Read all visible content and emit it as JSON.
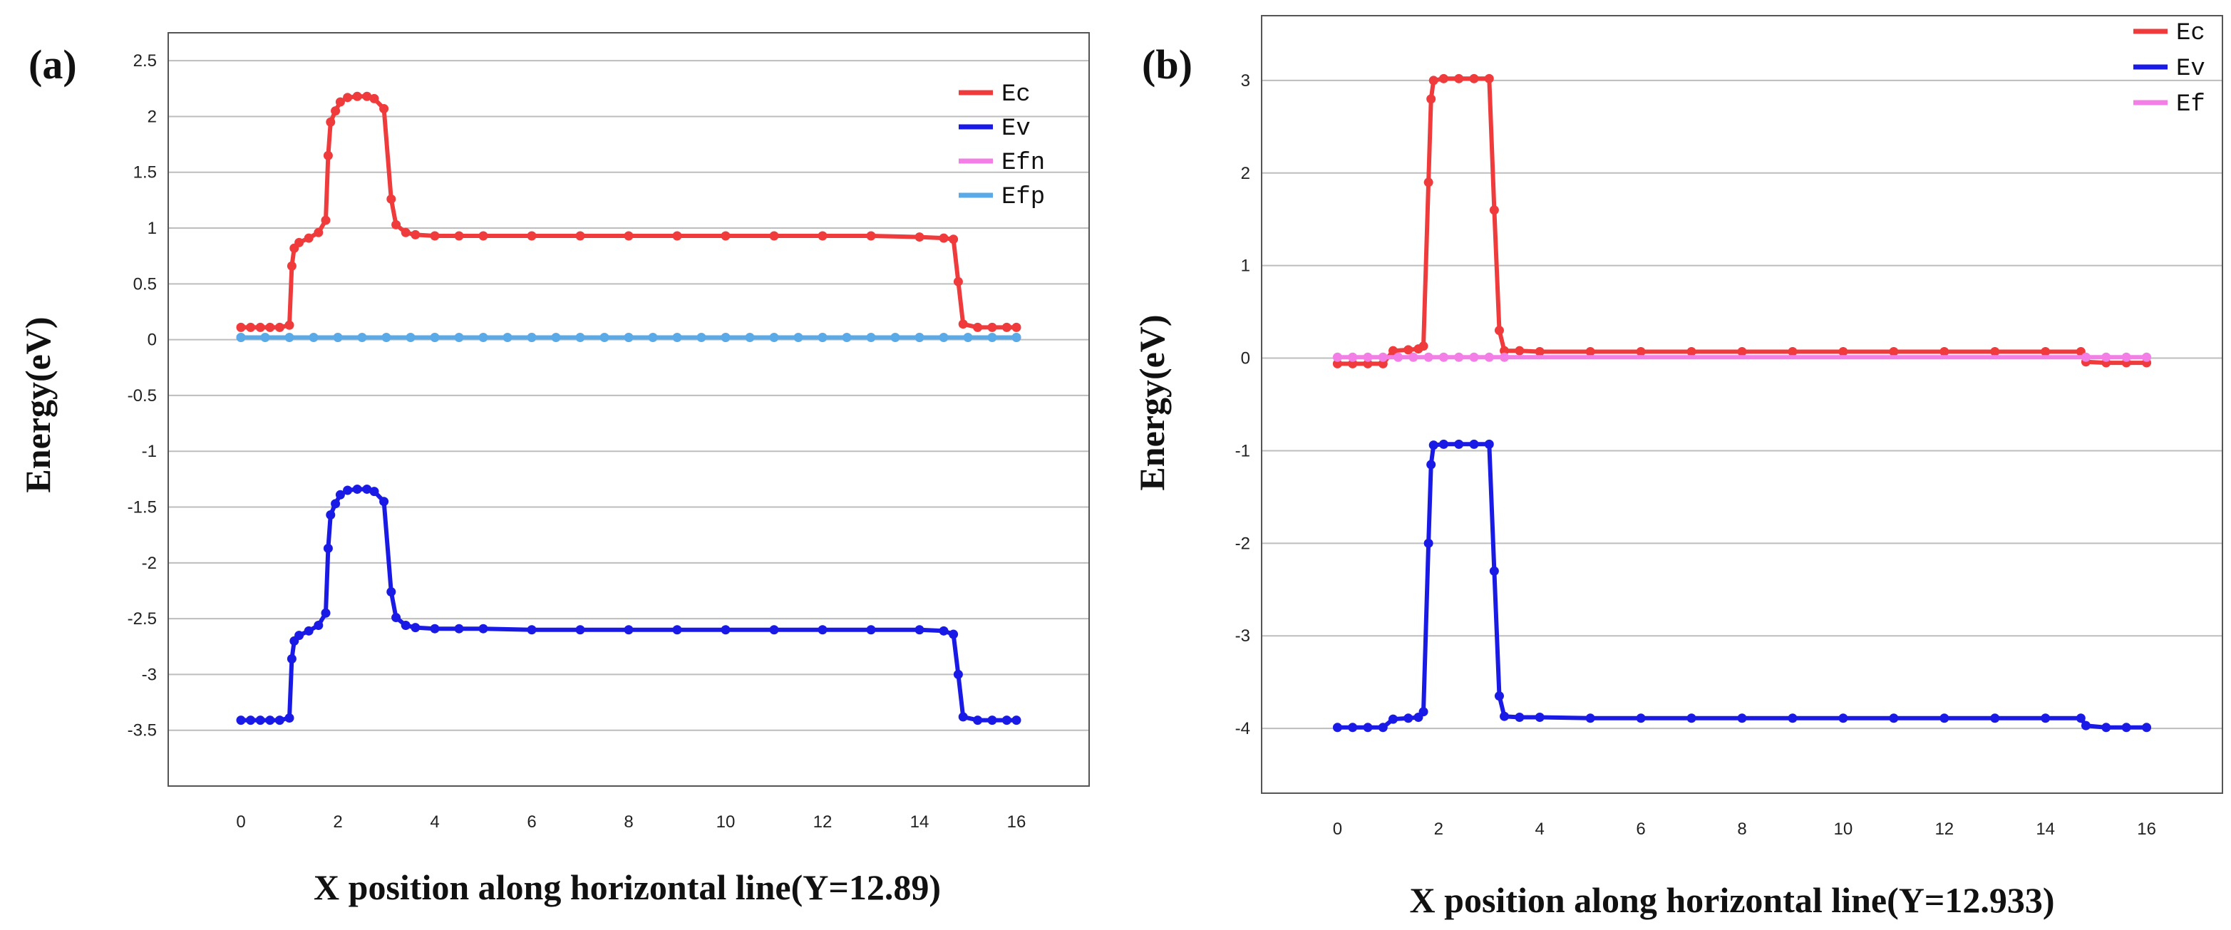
{
  "colors": {
    "Ec": "#ef3b3b",
    "Ev": "#1a1ae6",
    "Efn": "#f27ee6",
    "Efp": "#5aaae8",
    "Ef": "#f27ee6",
    "grid": "#bdbdbd",
    "frame": "#555555"
  },
  "chart_data": [
    {
      "type": "line",
      "panel_label": "(a)",
      "xlabel": "X position along horizontal line(Y=12.89)",
      "ylabel": "Energy(eV)",
      "xlim": [
        -1.5,
        17.5
      ],
      "ylim": [
        -4,
        2.75
      ],
      "x_ticks": [
        0,
        2,
        4,
        6,
        8,
        10,
        12,
        14,
        16
      ],
      "x_tick_labels": [
        "0",
        "2",
        "4",
        "6",
        "8",
        "10",
        "12",
        "14",
        "16"
      ],
      "y_ticks": [
        -3.5,
        -3,
        -2.5,
        -2,
        -1.5,
        -1,
        -0.5,
        0,
        0.5,
        1,
        1.5,
        2,
        2.5
      ],
      "y_tick_labels": [
        "-3.5",
        "-3",
        "-2.5",
        "-2",
        "-1.5",
        "-1",
        "-0.5",
        "0",
        "0.5",
        "1",
        "1.5",
        "2",
        "2.5"
      ],
      "grid": "horizontal",
      "legend_position": "top-right",
      "series": [
        {
          "name": "Ec",
          "color": "#ef3b3b",
          "points": [
            [
              0,
              0.11
            ],
            [
              0.2,
              0.11
            ],
            [
              0.4,
              0.11
            ],
            [
              0.6,
              0.11
            ],
            [
              0.8,
              0.11
            ],
            [
              1,
              0.13
            ],
            [
              1.05,
              0.66
            ],
            [
              1.1,
              0.82
            ],
            [
              1.2,
              0.87
            ],
            [
              1.4,
              0.91
            ],
            [
              1.6,
              0.96
            ],
            [
              1.75,
              1.07
            ],
            [
              1.8,
              1.65
            ],
            [
              1.85,
              1.95
            ],
            [
              1.95,
              2.05
            ],
            [
              2.05,
              2.13
            ],
            [
              2.2,
              2.17
            ],
            [
              2.4,
              2.18
            ],
            [
              2.6,
              2.18
            ],
            [
              2.75,
              2.16
            ],
            [
              2.95,
              2.07
            ],
            [
              3.1,
              1.26
            ],
            [
              3.2,
              1.03
            ],
            [
              3.4,
              0.96
            ],
            [
              3.6,
              0.94
            ],
            [
              4,
              0.93
            ],
            [
              4.5,
              0.93
            ],
            [
              5,
              0.93
            ],
            [
              6,
              0.93
            ],
            [
              7,
              0.93
            ],
            [
              8,
              0.93
            ],
            [
              9,
              0.93
            ],
            [
              10,
              0.93
            ],
            [
              11,
              0.93
            ],
            [
              12,
              0.93
            ],
            [
              13,
              0.93
            ],
            [
              14,
              0.92
            ],
            [
              14.5,
              0.91
            ],
            [
              14.7,
              0.9
            ],
            [
              14.8,
              0.52
            ],
            [
              14.9,
              0.14
            ],
            [
              15.2,
              0.11
            ],
            [
              15.5,
              0.11
            ],
            [
              15.8,
              0.11
            ],
            [
              16,
              0.11
            ]
          ]
        },
        {
          "name": "Ev",
          "color": "#1a1ae6",
          "points": [
            [
              0,
              -3.41
            ],
            [
              0.2,
              -3.41
            ],
            [
              0.4,
              -3.41
            ],
            [
              0.6,
              -3.41
            ],
            [
              0.8,
              -3.41
            ],
            [
              1,
              -3.39
            ],
            [
              1.05,
              -2.86
            ],
            [
              1.1,
              -2.7
            ],
            [
              1.2,
              -2.65
            ],
            [
              1.4,
              -2.61
            ],
            [
              1.6,
              -2.56
            ],
            [
              1.75,
              -2.45
            ],
            [
              1.8,
              -1.87
            ],
            [
              1.85,
              -1.57
            ],
            [
              1.95,
              -1.47
            ],
            [
              2.05,
              -1.39
            ],
            [
              2.2,
              -1.35
            ],
            [
              2.4,
              -1.34
            ],
            [
              2.6,
              -1.34
            ],
            [
              2.75,
              -1.36
            ],
            [
              2.95,
              -1.45
            ],
            [
              3.1,
              -2.26
            ],
            [
              3.2,
              -2.49
            ],
            [
              3.4,
              -2.56
            ],
            [
              3.6,
              -2.58
            ],
            [
              4,
              -2.59
            ],
            [
              4.5,
              -2.59
            ],
            [
              5,
              -2.59
            ],
            [
              6,
              -2.6
            ],
            [
              7,
              -2.6
            ],
            [
              8,
              -2.6
            ],
            [
              9,
              -2.6
            ],
            [
              10,
              -2.6
            ],
            [
              11,
              -2.6
            ],
            [
              12,
              -2.6
            ],
            [
              13,
              -2.6
            ],
            [
              14,
              -2.6
            ],
            [
              14.5,
              -2.61
            ],
            [
              14.7,
              -2.64
            ],
            [
              14.8,
              -3.0
            ],
            [
              14.9,
              -3.38
            ],
            [
              15.2,
              -3.41
            ],
            [
              15.5,
              -3.41
            ],
            [
              15.8,
              -3.41
            ],
            [
              16,
              -3.41
            ]
          ]
        },
        {
          "name": "Efn",
          "color": "#f27ee6",
          "points": [
            [
              0,
              0.02
            ],
            [
              2,
              0.02
            ],
            [
              4,
              0.02
            ],
            [
              6,
              0.02
            ],
            [
              8,
              0.02
            ],
            [
              10,
              0.02
            ],
            [
              12,
              0.02
            ],
            [
              14,
              0.02
            ],
            [
              16,
              0.02
            ]
          ]
        },
        {
          "name": "Efp",
          "color": "#5aaae8",
          "points": [
            [
              0,
              0.02
            ],
            [
              0.5,
              0.02
            ],
            [
              1,
              0.02
            ],
            [
              1.5,
              0.02
            ],
            [
              2,
              0.02
            ],
            [
              2.5,
              0.02
            ],
            [
              3,
              0.02
            ],
            [
              3.5,
              0.02
            ],
            [
              4,
              0.02
            ],
            [
              4.5,
              0.02
            ],
            [
              5,
              0.02
            ],
            [
              5.5,
              0.02
            ],
            [
              6,
              0.02
            ],
            [
              6.5,
              0.02
            ],
            [
              7,
              0.02
            ],
            [
              7.5,
              0.02
            ],
            [
              8,
              0.02
            ],
            [
              8.5,
              0.02
            ],
            [
              9,
              0.02
            ],
            [
              9.5,
              0.02
            ],
            [
              10,
              0.02
            ],
            [
              10.5,
              0.02
            ],
            [
              11,
              0.02
            ],
            [
              11.5,
              0.02
            ],
            [
              12,
              0.02
            ],
            [
              12.5,
              0.02
            ],
            [
              13,
              0.02
            ],
            [
              13.5,
              0.02
            ],
            [
              14,
              0.02
            ],
            [
              14.5,
              0.02
            ],
            [
              15,
              0.02
            ],
            [
              15.5,
              0.02
            ],
            [
              16,
              0.02
            ]
          ]
        }
      ]
    },
    {
      "type": "line",
      "panel_label": "(b)",
      "xlabel": "X position along horizontal line(Y=12.933)",
      "ylabel": "Energy(eV)",
      "xlim": [
        -1.5,
        17.5
      ],
      "ylim": [
        -4.7,
        3.7
      ],
      "x_ticks": [
        0,
        2,
        4,
        6,
        8,
        10,
        12,
        14,
        16
      ],
      "x_tick_labels": [
        "0",
        "2",
        "4",
        "6",
        "8",
        "10",
        "12",
        "14",
        "16"
      ],
      "y_ticks": [
        -4,
        -3,
        -2,
        -1,
        0,
        1,
        2,
        3
      ],
      "y_tick_labels": [
        "-4",
        "-3",
        "-2",
        "-1",
        "0",
        "1",
        "2",
        "3"
      ],
      "grid": "horizontal",
      "legend_position": "top-right",
      "series": [
        {
          "name": "Ec",
          "color": "#ef3b3b",
          "points": [
            [
              0,
              -0.06
            ],
            [
              0.3,
              -0.06
            ],
            [
              0.6,
              -0.06
            ],
            [
              0.9,
              -0.06
            ],
            [
              1.1,
              0.08
            ],
            [
              1.4,
              0.09
            ],
            [
              1.6,
              0.1
            ],
            [
              1.7,
              0.13
            ],
            [
              1.8,
              1.9
            ],
            [
              1.85,
              2.8
            ],
            [
              1.9,
              3.0
            ],
            [
              2.1,
              3.02
            ],
            [
              2.4,
              3.02
            ],
            [
              2.7,
              3.02
            ],
            [
              3.0,
              3.02
            ],
            [
              3.1,
              1.6
            ],
            [
              3.2,
              0.3
            ],
            [
              3.3,
              0.08
            ],
            [
              3.6,
              0.08
            ],
            [
              4,
              0.07
            ],
            [
              5,
              0.07
            ],
            [
              6,
              0.07
            ],
            [
              7,
              0.07
            ],
            [
              8,
              0.07
            ],
            [
              9,
              0.07
            ],
            [
              10,
              0.07
            ],
            [
              11,
              0.07
            ],
            [
              12,
              0.07
            ],
            [
              13,
              0.07
            ],
            [
              14,
              0.07
            ],
            [
              14.7,
              0.07
            ],
            [
              14.8,
              -0.04
            ],
            [
              15.2,
              -0.05
            ],
            [
              15.6,
              -0.05
            ],
            [
              16,
              -0.05
            ]
          ]
        },
        {
          "name": "Ev",
          "color": "#1a1ae6",
          "points": [
            [
              0,
              -3.99
            ],
            [
              0.3,
              -3.99
            ],
            [
              0.6,
              -3.99
            ],
            [
              0.9,
              -3.99
            ],
            [
              1.1,
              -3.9
            ],
            [
              1.4,
              -3.89
            ],
            [
              1.6,
              -3.88
            ],
            [
              1.7,
              -3.82
            ],
            [
              1.8,
              -2.0
            ],
            [
              1.85,
              -1.15
            ],
            [
              1.9,
              -0.94
            ],
            [
              2.1,
              -0.93
            ],
            [
              2.4,
              -0.93
            ],
            [
              2.7,
              -0.93
            ],
            [
              3.0,
              -0.93
            ],
            [
              3.1,
              -2.3
            ],
            [
              3.2,
              -3.65
            ],
            [
              3.3,
              -3.87
            ],
            [
              3.6,
              -3.88
            ],
            [
              4,
              -3.88
            ],
            [
              5,
              -3.89
            ],
            [
              6,
              -3.89
            ],
            [
              7,
              -3.89
            ],
            [
              8,
              -3.89
            ],
            [
              9,
              -3.89
            ],
            [
              10,
              -3.89
            ],
            [
              11,
              -3.89
            ],
            [
              12,
              -3.89
            ],
            [
              13,
              -3.89
            ],
            [
              14,
              -3.89
            ],
            [
              14.7,
              -3.89
            ],
            [
              14.8,
              -3.97
            ],
            [
              15.2,
              -3.99
            ],
            [
              15.6,
              -3.99
            ],
            [
              16,
              -3.99
            ]
          ]
        },
        {
          "name": "Ef",
          "color": "#f27ee6",
          "points": [
            [
              0,
              0.01
            ],
            [
              0.3,
              0.01
            ],
            [
              0.6,
              0.01
            ],
            [
              0.9,
              0.01
            ],
            [
              1.2,
              0.01
            ],
            [
              1.5,
              0.01
            ],
            [
              1.8,
              0.01
            ],
            [
              2.1,
              0.01
            ],
            [
              2.4,
              0.01
            ],
            [
              2.7,
              0.01
            ],
            [
              3.0,
              0.01
            ],
            [
              3.3,
              0.01
            ],
            [
              16,
              0.01
            ],
            [
              15.6,
              0.01
            ],
            [
              15.2,
              0.01
            ],
            [
              14.8,
              0.01
            ]
          ]
        }
      ]
    }
  ]
}
